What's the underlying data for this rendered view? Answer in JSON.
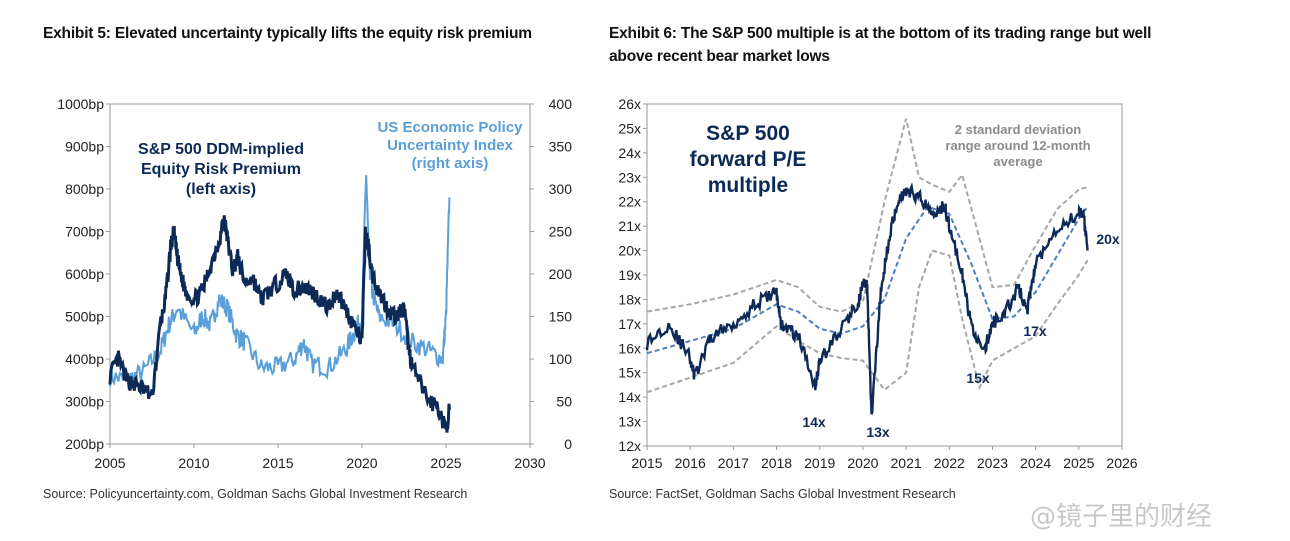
{
  "exhibit5": {
    "title": "Exhibit 5: Elevated uncertainty typically lifts the equity risk premium",
    "source": "Source: Policyuncertainty.com, Goldman Sachs Global Investment Research"
  },
  "exhibit6": {
    "title_line1": "Exhibit 6: The S&P 500 multiple is at the bottom of its trading range but well",
    "title_line2": "above recent bear market lows",
    "source": "Source: FactSet, Goldman Sachs Global Investment Research"
  },
  "watermark": "@镜子里的财经",
  "chart_data": [
    {
      "type": "line",
      "title": "Exhibit 5: Elevated uncertainty typically lifts the equity risk premium",
      "xlim": [
        2005,
        2030
      ],
      "x_ticks": [
        "2005",
        "2010",
        "2015",
        "2020",
        "2025",
        "2030"
      ],
      "y_left_lim": [
        200,
        1000
      ],
      "y_left_ticks": [
        "1000bp",
        "900bp",
        "800bp",
        "700bp",
        "600bp",
        "500bp",
        "400bp",
        "300bp",
        "200bp"
      ],
      "y_right_lim": [
        0,
        400
      ],
      "y_right_ticks": [
        "400",
        "350",
        "300",
        "250",
        "200",
        "150",
        "100",
        "50",
        "0"
      ],
      "annotations": {
        "erp_label": [
          "S&P 500 DDM-implied",
          "Equity Risk Premium",
          "(left axis)"
        ],
        "epu_label": [
          "US Economic Policy",
          "Uncertainty Index",
          "(right axis)"
        ]
      },
      "colors": {
        "erp": "#0d2a57",
        "epu": "#5a9fd8"
      },
      "series": [
        {
          "name": "S&P 500 DDM-implied Equity Risk Premium (left axis)",
          "axis": "left",
          "x": [
            2005.0,
            2005.5,
            2006.0,
            2006.5,
            2007.0,
            2007.5,
            2008.0,
            2008.3,
            2008.6,
            2008.8,
            2009.0,
            2009.2,
            2009.5,
            2010.0,
            2010.5,
            2011.0,
            2011.5,
            2011.8,
            2012.0,
            2012.3,
            2012.6,
            2013.0,
            2013.5,
            2014.0,
            2014.5,
            2015.0,
            2015.5,
            2016.0,
            2016.5,
            2017.0,
            2017.5,
            2018.0,
            2018.5,
            2019.0,
            2019.5,
            2020.0,
            2020.2,
            2020.4,
            2020.6,
            2021.0,
            2021.5,
            2022.0,
            2022.5,
            2022.8,
            2023.0,
            2023.5,
            2024.0,
            2024.5,
            2025.0,
            2025.2
          ],
          "values": [
            360,
            400,
            350,
            340,
            330,
            310,
            480,
            540,
            660,
            700,
            640,
            600,
            560,
            540,
            560,
            620,
            680,
            730,
            680,
            610,
            640,
            580,
            590,
            540,
            560,
            580,
            600,
            560,
            570,
            560,
            540,
            520,
            560,
            520,
            480,
            440,
            700,
            660,
            600,
            560,
            520,
            500,
            520,
            420,
            380,
            340,
            300,
            290,
            230,
            280
          ]
        },
        {
          "name": "US Economic Policy Uncertainty Index (right axis)",
          "axis": "right",
          "x": [
            2005.0,
            2006.0,
            2007.0,
            2008.0,
            2008.5,
            2009.0,
            2010.0,
            2010.5,
            2011.0,
            2011.5,
            2012.0,
            2012.5,
            2013.0,
            2014.0,
            2015.0,
            2016.0,
            2016.5,
            2017.0,
            2018.0,
            2019.0,
            2019.5,
            2020.0,
            2020.25,
            2020.4,
            2020.6,
            2021.0,
            2022.0,
            2023.0,
            2024.0,
            2024.8,
            2025.0,
            2025.2
          ],
          "values": [
            80,
            75,
            85,
            110,
            140,
            160,
            130,
            150,
            140,
            170,
            160,
            130,
            120,
            90,
            90,
            100,
            120,
            95,
            90,
            110,
            130,
            150,
            320,
            220,
            180,
            150,
            140,
            120,
            110,
            100,
            150,
            290
          ]
        }
      ]
    },
    {
      "type": "line",
      "title": "Exhibit 6: The S&P 500 multiple is at the bottom of its trading range but well above recent bear market lows",
      "xlim": [
        2015,
        2026
      ],
      "x_ticks": [
        "2015",
        "2016",
        "2017",
        "2018",
        "2019",
        "2020",
        "2021",
        "2022",
        "2023",
        "2024",
        "2025",
        "2026"
      ],
      "ylim": [
        12,
        26
      ],
      "y_ticks": [
        "26x",
        "25x",
        "24x",
        "23x",
        "22x",
        "21x",
        "20x",
        "19x",
        "18x",
        "17x",
        "16x",
        "15x",
        "14x",
        "13x",
        "12x"
      ],
      "annotations": {
        "main_label": [
          "S&P 500",
          "forward P/E",
          "multiple"
        ],
        "band_label": [
          "2 standard deviation",
          "range around 12-month",
          "average"
        ],
        "points": [
          "14x",
          "13x",
          "15x",
          "17x",
          "20x"
        ]
      },
      "colors": {
        "pe": "#0d2a57",
        "avg": "#4f7fbf",
        "band": "#a6a6a6"
      },
      "series": [
        {
          "name": "S&P 500 forward P/E multiple",
          "x": [
            2015.0,
            2015.5,
            2016.0,
            2016.1,
            2016.5,
            2017.0,
            2017.5,
            2018.0,
            2018.1,
            2018.5,
            2018.9,
            2019.0,
            2019.5,
            2019.9,
            2020.0,
            2020.1,
            2020.2,
            2020.4,
            2020.6,
            2020.8,
            2021.0,
            2021.3,
            2021.6,
            2021.9,
            2022.0,
            2022.3,
            2022.5,
            2022.8,
            2023.0,
            2023.3,
            2023.6,
            2023.8,
            2024.0,
            2024.5,
            2025.0,
            2025.1,
            2025.2
          ],
          "values": [
            16.2,
            17.0,
            15.6,
            14.8,
            16.5,
            17.0,
            17.8,
            18.3,
            17.0,
            16.5,
            14.5,
            15.5,
            16.8,
            17.9,
            18.6,
            18.5,
            13.2,
            18.0,
            20.5,
            22.0,
            22.5,
            22.2,
            21.6,
            21.8,
            21.0,
            19.0,
            17.0,
            15.8,
            17.0,
            17.5,
            18.5,
            17.5,
            19.5,
            21.0,
            21.5,
            21.6,
            20.0
          ]
        },
        {
          "name": "12-month average",
          "x": [
            2015.0,
            2016.0,
            2017.0,
            2018.0,
            2018.5,
            2019.0,
            2019.5,
            2020.0,
            2020.5,
            2021.0,
            2021.5,
            2022.0,
            2022.5,
            2023.0,
            2023.5,
            2024.0,
            2024.5,
            2025.0,
            2025.2
          ],
          "values": [
            15.8,
            16.3,
            16.8,
            17.8,
            17.5,
            16.8,
            16.6,
            16.9,
            18.0,
            20.5,
            21.8,
            21.5,
            19.5,
            17.2,
            17.3,
            18.3,
            19.8,
            21.3,
            21.8
          ]
        },
        {
          "name": "Upper band (+2 standard deviation)",
          "x": [
            2015.0,
            2016.0,
            2017.0,
            2018.0,
            2018.5,
            2019.0,
            2019.5,
            2020.0,
            2020.5,
            2021.0,
            2021.3,
            2021.6,
            2022.0,
            2022.3,
            2022.7,
            2023.0,
            2023.5,
            2024.0,
            2024.5,
            2025.0,
            2025.2
          ],
          "values": [
            17.5,
            17.8,
            18.2,
            18.8,
            18.5,
            17.7,
            17.5,
            17.9,
            22.0,
            25.4,
            23.0,
            22.7,
            22.4,
            23.1,
            20.5,
            18.5,
            18.6,
            20.2,
            21.7,
            22.5,
            22.6
          ]
        },
        {
          "name": "Lower band (-2 standard deviation)",
          "x": [
            2015.0,
            2016.0,
            2017.0,
            2018.0,
            2018.5,
            2019.0,
            2019.5,
            2020.0,
            2020.5,
            2021.0,
            2021.3,
            2021.6,
            2022.0,
            2022.3,
            2022.7,
            2023.0,
            2023.5,
            2024.0,
            2024.5,
            2025.0,
            2025.2
          ],
          "values": [
            14.2,
            14.8,
            15.4,
            16.9,
            16.3,
            15.8,
            15.6,
            15.5,
            14.3,
            15.0,
            18.5,
            20.0,
            19.8,
            17.2,
            14.4,
            15.5,
            16.0,
            16.5,
            17.8,
            19.0,
            19.6
          ]
        }
      ]
    }
  ]
}
